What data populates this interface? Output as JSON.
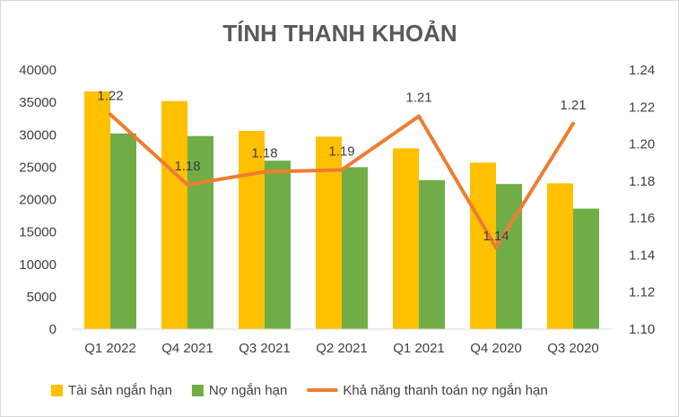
{
  "chart_data": {
    "type": "bar",
    "title": "TÍNH THANH KHOẢN",
    "categories": [
      "Q1 2022",
      "Q4 2021",
      "Q3 2021",
      "Q2 2021",
      "Q1 2021",
      "Q4 2020",
      "Q3 2020"
    ],
    "series": [
      {
        "name": "Tài sản ngắn hạn",
        "type": "bar",
        "axis": "left",
        "color": "#FFC000",
        "values": [
          36700,
          35200,
          30600,
          29700,
          27900,
          25700,
          22500
        ]
      },
      {
        "name": "Nợ ngắn hạn",
        "type": "bar",
        "axis": "left",
        "color": "#70AD47",
        "values": [
          30200,
          29800,
          26000,
          25000,
          23000,
          22400,
          18600
        ]
      },
      {
        "name": "Khả năng thanh toán nợ ngắn hạn",
        "type": "line",
        "axis": "right",
        "color": "#ED7D31",
        "values": [
          1.216,
          1.178,
          1.185,
          1.186,
          1.215,
          1.144,
          1.211
        ],
        "data_labels": [
          "1.22",
          "1.18",
          "1.18",
          "1.19",
          "1.21",
          "1.14",
          "1.21"
        ]
      }
    ],
    "y_left": {
      "lim": [
        0,
        40000
      ],
      "ticks": [
        "0",
        "5000",
        "10000",
        "15000",
        "20000",
        "25000",
        "30000",
        "35000",
        "40000"
      ]
    },
    "y_right": {
      "lim": [
        1.1,
        1.24
      ],
      "ticks": [
        "1.10",
        "1.12",
        "1.14",
        "1.16",
        "1.18",
        "1.20",
        "1.22",
        "1.24"
      ]
    },
    "grid": false,
    "legend": "bottom"
  }
}
